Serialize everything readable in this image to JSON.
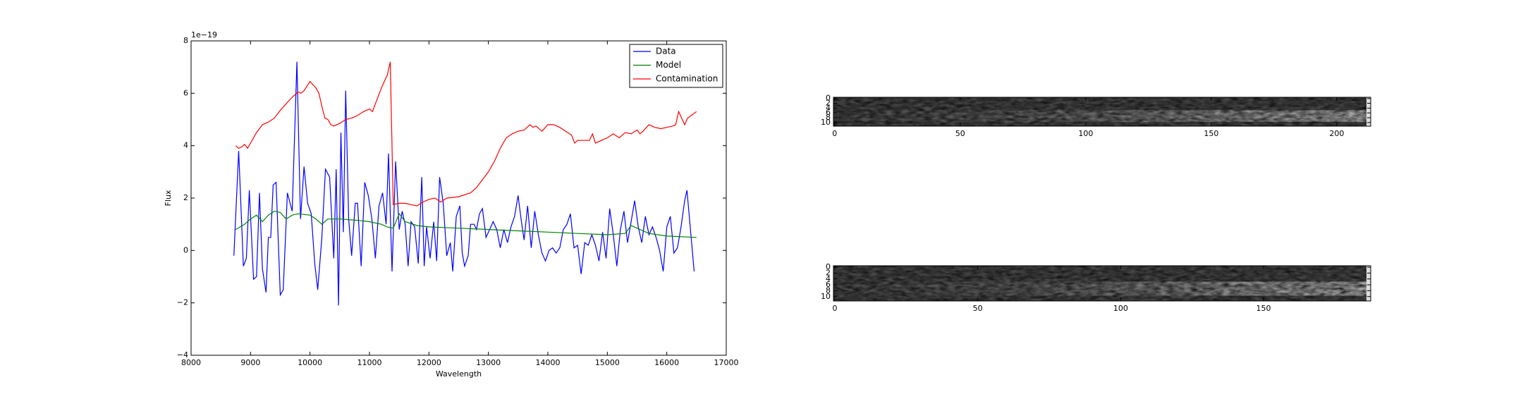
{
  "chart_data": [
    {
      "type": "line",
      "x_label": "Wavelength",
      "y_label": "Flux",
      "offset_label": "1e−19",
      "xlim": [
        8000,
        17000
      ],
      "xticks": [
        8000,
        9000,
        10000,
        11000,
        12000,
        13000,
        14000,
        15000,
        16000,
        17000
      ],
      "ylim": [
        -4,
        8
      ],
      "yticks": [
        {
          "value": -4,
          "label": "−4"
        },
        {
          "value": -2,
          "label": "−2"
        },
        0,
        2,
        4,
        6,
        8
      ],
      "legend": "upper right",
      "series": [
        {
          "name": "Data",
          "color": "#0000ff",
          "x": [
            8720,
            8800,
            8880,
            8930,
            8980,
            9050,
            9100,
            9150,
            9200,
            9260,
            9300,
            9340,
            9380,
            9430,
            9500,
            9550,
            9620,
            9700,
            9780,
            9840,
            9900,
            9960,
            10020,
            10080,
            10130,
            10200,
            10260,
            10330,
            10400,
            10440,
            10480,
            10520,
            10560,
            10600,
            10650,
            10700,
            10760,
            10800,
            10860,
            10920,
            10980,
            11040,
            11100,
            11160,
            11220,
            11280,
            11320,
            11380,
            11440,
            11500,
            11550,
            11600,
            11650,
            11700,
            11760,
            11820,
            11880,
            11920,
            11960,
            12020,
            12080,
            12130,
            12180,
            12240,
            12300,
            12360,
            12400,
            12460,
            12520,
            12560,
            12600,
            12660,
            12700,
            12760,
            12800,
            12850,
            12900,
            12960,
            13020,
            13080,
            13140,
            13200,
            13260,
            13320,
            13380,
            13440,
            13500,
            13550,
            13600,
            13660,
            13720,
            13780,
            13840,
            13900,
            13960,
            14020,
            14080,
            14140,
            14200,
            14260,
            14320,
            14380,
            14440,
            14500,
            14560,
            14620,
            14680,
            14740,
            14800,
            14860,
            14920,
            14980,
            15040,
            15100,
            15160,
            15220,
            15280,
            15340,
            15400,
            15460,
            15520,
            15580,
            15640,
            15700,
            15760,
            15820,
            15880,
            15940,
            16000,
            16060,
            16120,
            16180,
            16240,
            16300,
            16340,
            16460
          ],
          "values": [
            -0.2,
            3.8,
            -0.6,
            -0.3,
            2.3,
            -1.1,
            -1.0,
            2.2,
            -0.7,
            -1.6,
            0.5,
            0.5,
            2.5,
            2.6,
            -1.7,
            -1.5,
            2.2,
            1.5,
            7.2,
            1.2,
            3.2,
            1.8,
            1.4,
            -0.5,
            -1.5,
            0.5,
            3.1,
            2.8,
            -0.3,
            3.1,
            -2.1,
            4.5,
            0.7,
            6.1,
            1.2,
            -0.2,
            1.8,
            1.8,
            -0.6,
            2.6,
            2.1,
            1.2,
            -0.3,
            1.7,
            2.2,
            1.0,
            3.7,
            -0.8,
            3.4,
            0.8,
            1.5,
            1.0,
            -0.6,
            1.1,
            0.9,
            -0.5,
            2.8,
            -0.6,
            0.9,
            -0.3,
            1.1,
            -0.4,
            2.8,
            1.8,
            -0.2,
            0.3,
            -0.8,
            1.3,
            1.7,
            -0.1,
            -0.6,
            -0.2,
            1.0,
            1.0,
            0.8,
            1.4,
            1.6,
            0.5,
            0.8,
            1.1,
            0.8,
            0.1,
            0.8,
            0.3,
            0.9,
            1.3,
            2.1,
            1.2,
            0.4,
            1.7,
            0.1,
            1.5,
            0.6,
            -0.1,
            -0.4,
            0.0,
            0.1,
            -0.1,
            0.1,
            0.8,
            1.0,
            1.4,
            0.1,
            0.2,
            -0.9,
            0.3,
            0.2,
            0.6,
            0.2,
            -0.4,
            0.7,
            -0.3,
            1.6,
            0.6,
            -0.6,
            0.8,
            1.5,
            0.3,
            1.1,
            1.9,
            0.9,
            0.3,
            1.3,
            0.6,
            0.9,
            0.5,
            0.0,
            -0.8,
            0.9,
            1.3,
            -0.1,
            0.1,
            0.9,
            1.9,
            2.3,
            -0.8
          ]
        },
        {
          "name": "Model",
          "color": "#008000",
          "x": [
            8750,
            8900,
            9000,
            9100,
            9200,
            9300,
            9400,
            9500,
            9600,
            9700,
            9800,
            10000,
            10100,
            10200,
            10300,
            10500,
            10800,
            11000,
            11200,
            11300,
            11400,
            11500,
            11600,
            11800,
            12000,
            12500,
            13000,
            13500,
            14000,
            14500,
            15000,
            15300,
            15400,
            15500,
            15700,
            16000,
            16500
          ],
          "values": [
            0.8,
            1.0,
            1.2,
            1.35,
            1.1,
            1.35,
            1.5,
            1.45,
            1.2,
            1.35,
            1.4,
            1.35,
            1.2,
            1.0,
            1.2,
            1.2,
            1.15,
            1.1,
            1.0,
            0.9,
            0.85,
            1.4,
            1.1,
            0.95,
            0.9,
            0.85,
            0.8,
            0.75,
            0.7,
            0.65,
            0.6,
            0.65,
            0.95,
            0.85,
            0.65,
            0.55,
            0.5
          ]
        },
        {
          "name": "Contamination",
          "color": "#ff0000",
          "x": [
            8750,
            8800,
            8850,
            8900,
            8950,
            9000,
            9100,
            9200,
            9300,
            9400,
            9500,
            9600,
            9700,
            9800,
            9850,
            9900,
            10000,
            10100,
            10150,
            10200,
            10250,
            10300,
            10350,
            10400,
            10500,
            10600,
            10700,
            10800,
            10900,
            11000,
            11050,
            11100,
            11200,
            11300,
            11350,
            11400,
            11500,
            11600,
            11700,
            11800,
            11900,
            12000,
            12100,
            12200,
            12300,
            12500,
            12700,
            12800,
            12900,
            13000,
            13100,
            13200,
            13300,
            13400,
            13500,
            13600,
            13700,
            13750,
            13800,
            13900,
            14000,
            14100,
            14200,
            14300,
            14400,
            14450,
            14500,
            14600,
            14700,
            14750,
            14800,
            14900,
            15000,
            15100,
            15200,
            15300,
            15400,
            15500,
            15550,
            15600,
            15700,
            15800,
            15900,
            16000,
            16100,
            16150,
            16200,
            16300,
            16350,
            16500
          ],
          "values": [
            4.0,
            3.9,
            3.95,
            4.05,
            3.9,
            4.1,
            4.5,
            4.8,
            4.9,
            5.05,
            5.35,
            5.6,
            5.85,
            6.05,
            6.0,
            6.1,
            6.45,
            6.2,
            6.0,
            5.5,
            5.05,
            5.0,
            4.8,
            4.75,
            4.85,
            5.0,
            5.05,
            5.15,
            5.3,
            5.4,
            5.3,
            5.6,
            6.2,
            6.7,
            7.2,
            1.75,
            1.8,
            1.8,
            1.75,
            1.7,
            1.85,
            1.95,
            2.0,
            1.85,
            2.0,
            2.05,
            2.2,
            2.4,
            2.7,
            3.0,
            3.4,
            3.9,
            4.3,
            4.45,
            4.55,
            4.6,
            4.8,
            4.7,
            4.75,
            4.55,
            4.8,
            4.8,
            4.7,
            4.55,
            4.4,
            4.1,
            4.2,
            4.2,
            4.2,
            4.45,
            4.1,
            4.2,
            4.3,
            4.45,
            4.3,
            4.5,
            4.45,
            4.6,
            4.45,
            4.55,
            4.8,
            4.7,
            4.65,
            4.7,
            4.75,
            4.8,
            5.3,
            4.8,
            5.05,
            5.3
          ]
        }
      ]
    },
    {
      "type": "image",
      "xlim": [
        -0.5,
        213.5
      ],
      "xticks": [
        0,
        50,
        100,
        150,
        200
      ],
      "ylim": [
        11.5,
        -0.5
      ],
      "yticks": [
        0,
        2,
        4,
        6,
        8,
        10
      ]
    },
    {
      "type": "image",
      "xlim": [
        -0.5,
        187.5
      ],
      "xticks": [
        0,
        50,
        100,
        150
      ],
      "ylim": [
        11.5,
        -0.5
      ],
      "yticks": [
        0,
        2,
        4,
        6,
        8,
        10
      ]
    }
  ]
}
